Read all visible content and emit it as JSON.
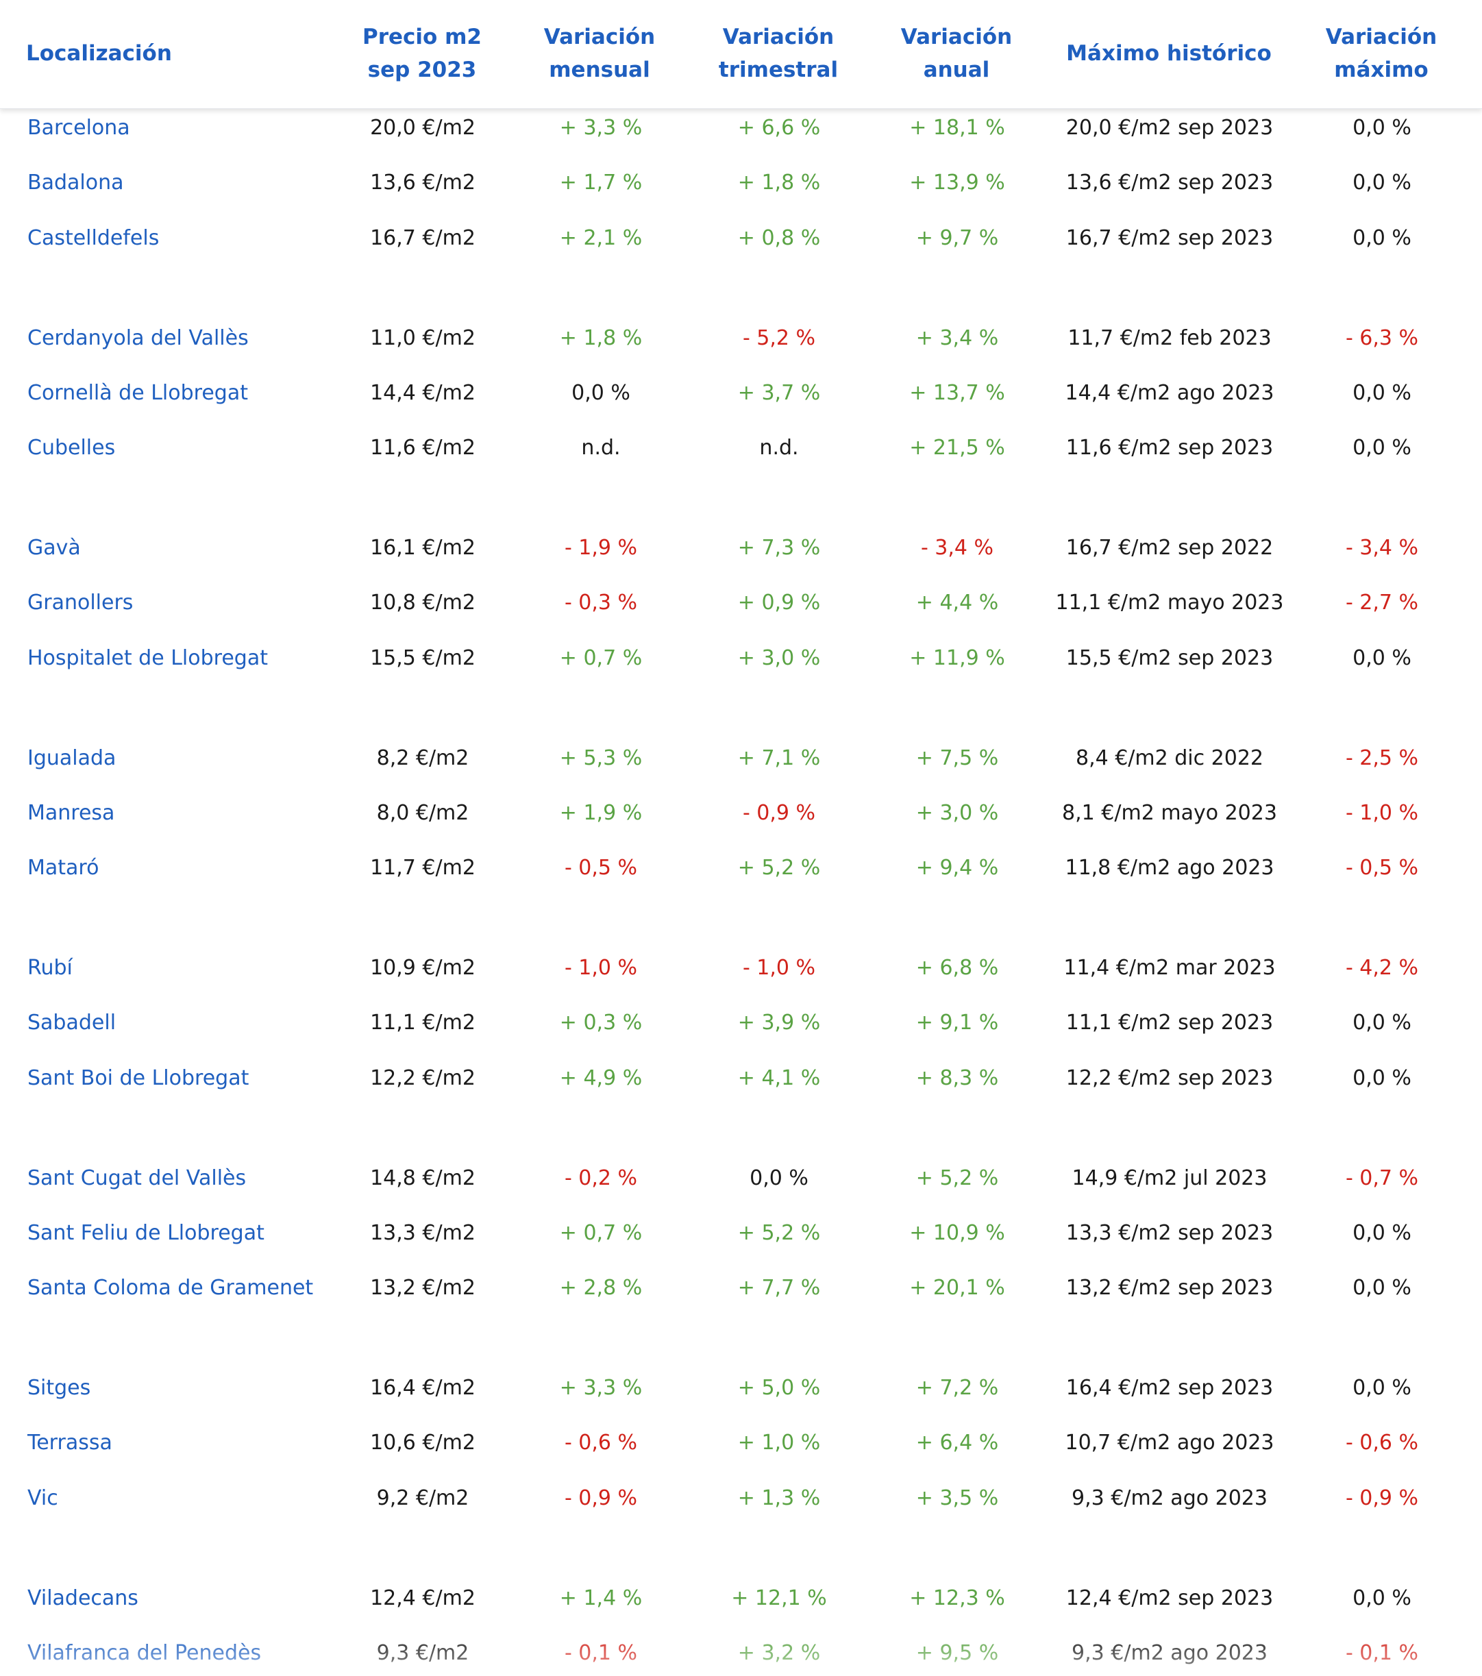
{
  "colors": {
    "link": "#1f5fbf",
    "positive": "#5aa344",
    "negative": "#d0221a",
    "neutral": "#1a1a1a"
  },
  "headers": {
    "location": "Localización",
    "price": [
      "Precio m2",
      "sep 2023"
    ],
    "monthly": [
      "Variación",
      "mensual"
    ],
    "quarterly": [
      "Variación",
      "trimestral"
    ],
    "annual": [
      "Variación",
      "anual"
    ],
    "historic_max": "Máximo histórico",
    "max_var": [
      "Variación",
      "máximo"
    ]
  },
  "rows": [
    {
      "loc": "Barcelona",
      "price": "20,0 €/m2",
      "monthly": "+ 3,3 %",
      "quarterly": "+ 6,6 %",
      "annual": "+ 18,1 %",
      "max": "20,0 €/m2 sep 2023",
      "maxvar": "0,0 %"
    },
    {
      "loc": "Badalona",
      "price": "13,6 €/m2",
      "monthly": "+ 1,7 %",
      "quarterly": "+ 1,8 %",
      "annual": "+ 13,9 %",
      "max": "13,6 €/m2 sep 2023",
      "maxvar": "0,0 %"
    },
    {
      "loc": "Castelldefels",
      "price": "16,7 €/m2",
      "monthly": "+ 2,1 %",
      "quarterly": "+ 0,8 %",
      "annual": "+ 9,7 %",
      "max": "16,7 €/m2 sep 2023",
      "maxvar": "0,0 %"
    },
    {
      "loc": "Cerdanyola del Vallès",
      "price": "11,0 €/m2",
      "monthly": "+ 1,8 %",
      "quarterly": "- 5,2 %",
      "annual": "+ 3,4 %",
      "max": "11,7 €/m2 feb 2023",
      "maxvar": "- 6,3 %"
    },
    {
      "loc": "Cornellà de Llobregat",
      "price": "14,4 €/m2",
      "monthly": "0,0 %",
      "quarterly": "+ 3,7 %",
      "annual": "+ 13,7 %",
      "max": "14,4 €/m2 ago 2023",
      "maxvar": "0,0 %"
    },
    {
      "loc": "Cubelles",
      "price": "11,6 €/m2",
      "monthly": "n.d.",
      "quarterly": "n.d.",
      "annual": "+ 21,5 %",
      "max": "11,6 €/m2 sep 2023",
      "maxvar": "0,0 %"
    },
    {
      "loc": "Gavà",
      "price": "16,1 €/m2",
      "monthly": "- 1,9 %",
      "quarterly": "+ 7,3 %",
      "annual": "- 3,4 %",
      "max": "16,7 €/m2 sep 2022",
      "maxvar": "- 3,4 %"
    },
    {
      "loc": "Granollers",
      "price": "10,8 €/m2",
      "monthly": "- 0,3 %",
      "quarterly": "+ 0,9 %",
      "annual": "+ 4,4 %",
      "max": "11,1 €/m2 mayo 2023",
      "maxvar": "- 2,7 %"
    },
    {
      "loc": "Hospitalet de Llobregat",
      "price": "15,5 €/m2",
      "monthly": "+ 0,7 %",
      "quarterly": "+ 3,0 %",
      "annual": "+ 11,9 %",
      "max": "15,5 €/m2 sep 2023",
      "maxvar": "0,0 %"
    },
    {
      "loc": "Igualada",
      "price": "8,2 €/m2",
      "monthly": "+ 5,3 %",
      "quarterly": "+ 7,1 %",
      "annual": "+ 7,5 %",
      "max": "8,4 €/m2 dic 2022",
      "maxvar": "- 2,5 %"
    },
    {
      "loc": "Manresa",
      "price": "8,0 €/m2",
      "monthly": "+ 1,9 %",
      "quarterly": "- 0,9 %",
      "annual": "+ 3,0 %",
      "max": "8,1 €/m2 mayo 2023",
      "maxvar": "- 1,0 %"
    },
    {
      "loc": "Mataró",
      "price": "11,7 €/m2",
      "monthly": "- 0,5 %",
      "quarterly": "+ 5,2 %",
      "annual": "+ 9,4 %",
      "max": "11,8 €/m2 ago 2023",
      "maxvar": "- 0,5 %"
    },
    {
      "loc": "Rubí",
      "price": "10,9 €/m2",
      "monthly": "- 1,0 %",
      "quarterly": "- 1,0 %",
      "annual": "+ 6,8 %",
      "max": "11,4 €/m2 mar 2023",
      "maxvar": "- 4,2 %"
    },
    {
      "loc": "Sabadell",
      "price": "11,1 €/m2",
      "monthly": "+ 0,3 %",
      "quarterly": "+ 3,9 %",
      "annual": "+ 9,1 %",
      "max": "11,1 €/m2 sep 2023",
      "maxvar": "0,0 %"
    },
    {
      "loc": "Sant Boi de Llobregat",
      "price": "12,2 €/m2",
      "monthly": "+ 4,9 %",
      "quarterly": "+ 4,1 %",
      "annual": "+ 8,3 %",
      "max": "12,2 €/m2 sep 2023",
      "maxvar": "0,0 %"
    },
    {
      "loc": "Sant Cugat del Vallès",
      "price": "14,8 €/m2",
      "monthly": "- 0,2 %",
      "quarterly": "0,0 %",
      "annual": "+ 5,2 %",
      "max": "14,9 €/m2 jul 2023",
      "maxvar": "- 0,7 %"
    },
    {
      "loc": "Sant Feliu de Llobregat",
      "price": "13,3 €/m2",
      "monthly": "+ 0,7 %",
      "quarterly": "+ 5,2 %",
      "annual": "+ 10,9 %",
      "max": "13,3 €/m2 sep 2023",
      "maxvar": "0,0 %"
    },
    {
      "loc": "Santa Coloma de Gramenet",
      "price": "13,2 €/m2",
      "monthly": "+ 2,8 %",
      "quarterly": "+ 7,7 %",
      "annual": "+ 20,1 %",
      "max": "13,2 €/m2 sep 2023",
      "maxvar": "0,0 %"
    },
    {
      "loc": "Sitges",
      "price": "16,4 €/m2",
      "monthly": "+ 3,3 %",
      "quarterly": "+ 5,0 %",
      "annual": "+ 7,2 %",
      "max": "16,4 €/m2 sep 2023",
      "maxvar": "0,0 %"
    },
    {
      "loc": "Terrassa",
      "price": "10,6 €/m2",
      "monthly": "- 0,6 %",
      "quarterly": "+ 1,0 %",
      "annual": "+ 6,4 %",
      "max": "10,7 €/m2 ago 2023",
      "maxvar": "- 0,6 %"
    },
    {
      "loc": "Vic",
      "price": "9,2 €/m2",
      "monthly": "- 0,9 %",
      "quarterly": "+ 1,3 %",
      "annual": "+ 3,5 %",
      "max": "9,3 €/m2 ago 2023",
      "maxvar": "- 0,9 %"
    },
    {
      "loc": "Viladecans",
      "price": "12,4 €/m2",
      "monthly": "+ 1,4 %",
      "quarterly": "+ 12,1 %",
      "annual": "+ 12,3 %",
      "max": "12,4 €/m2 sep 2023",
      "maxvar": "0,0 %"
    },
    {
      "loc": "Vilafranca del Penedès",
      "price": "9,3 €/m2",
      "monthly": "- 0,1 %",
      "quarterly": "+ 3,2 %",
      "annual": "+ 9,5 %",
      "max": "9,3 €/m2 ago 2023",
      "maxvar": "- 0,1 %"
    }
  ]
}
